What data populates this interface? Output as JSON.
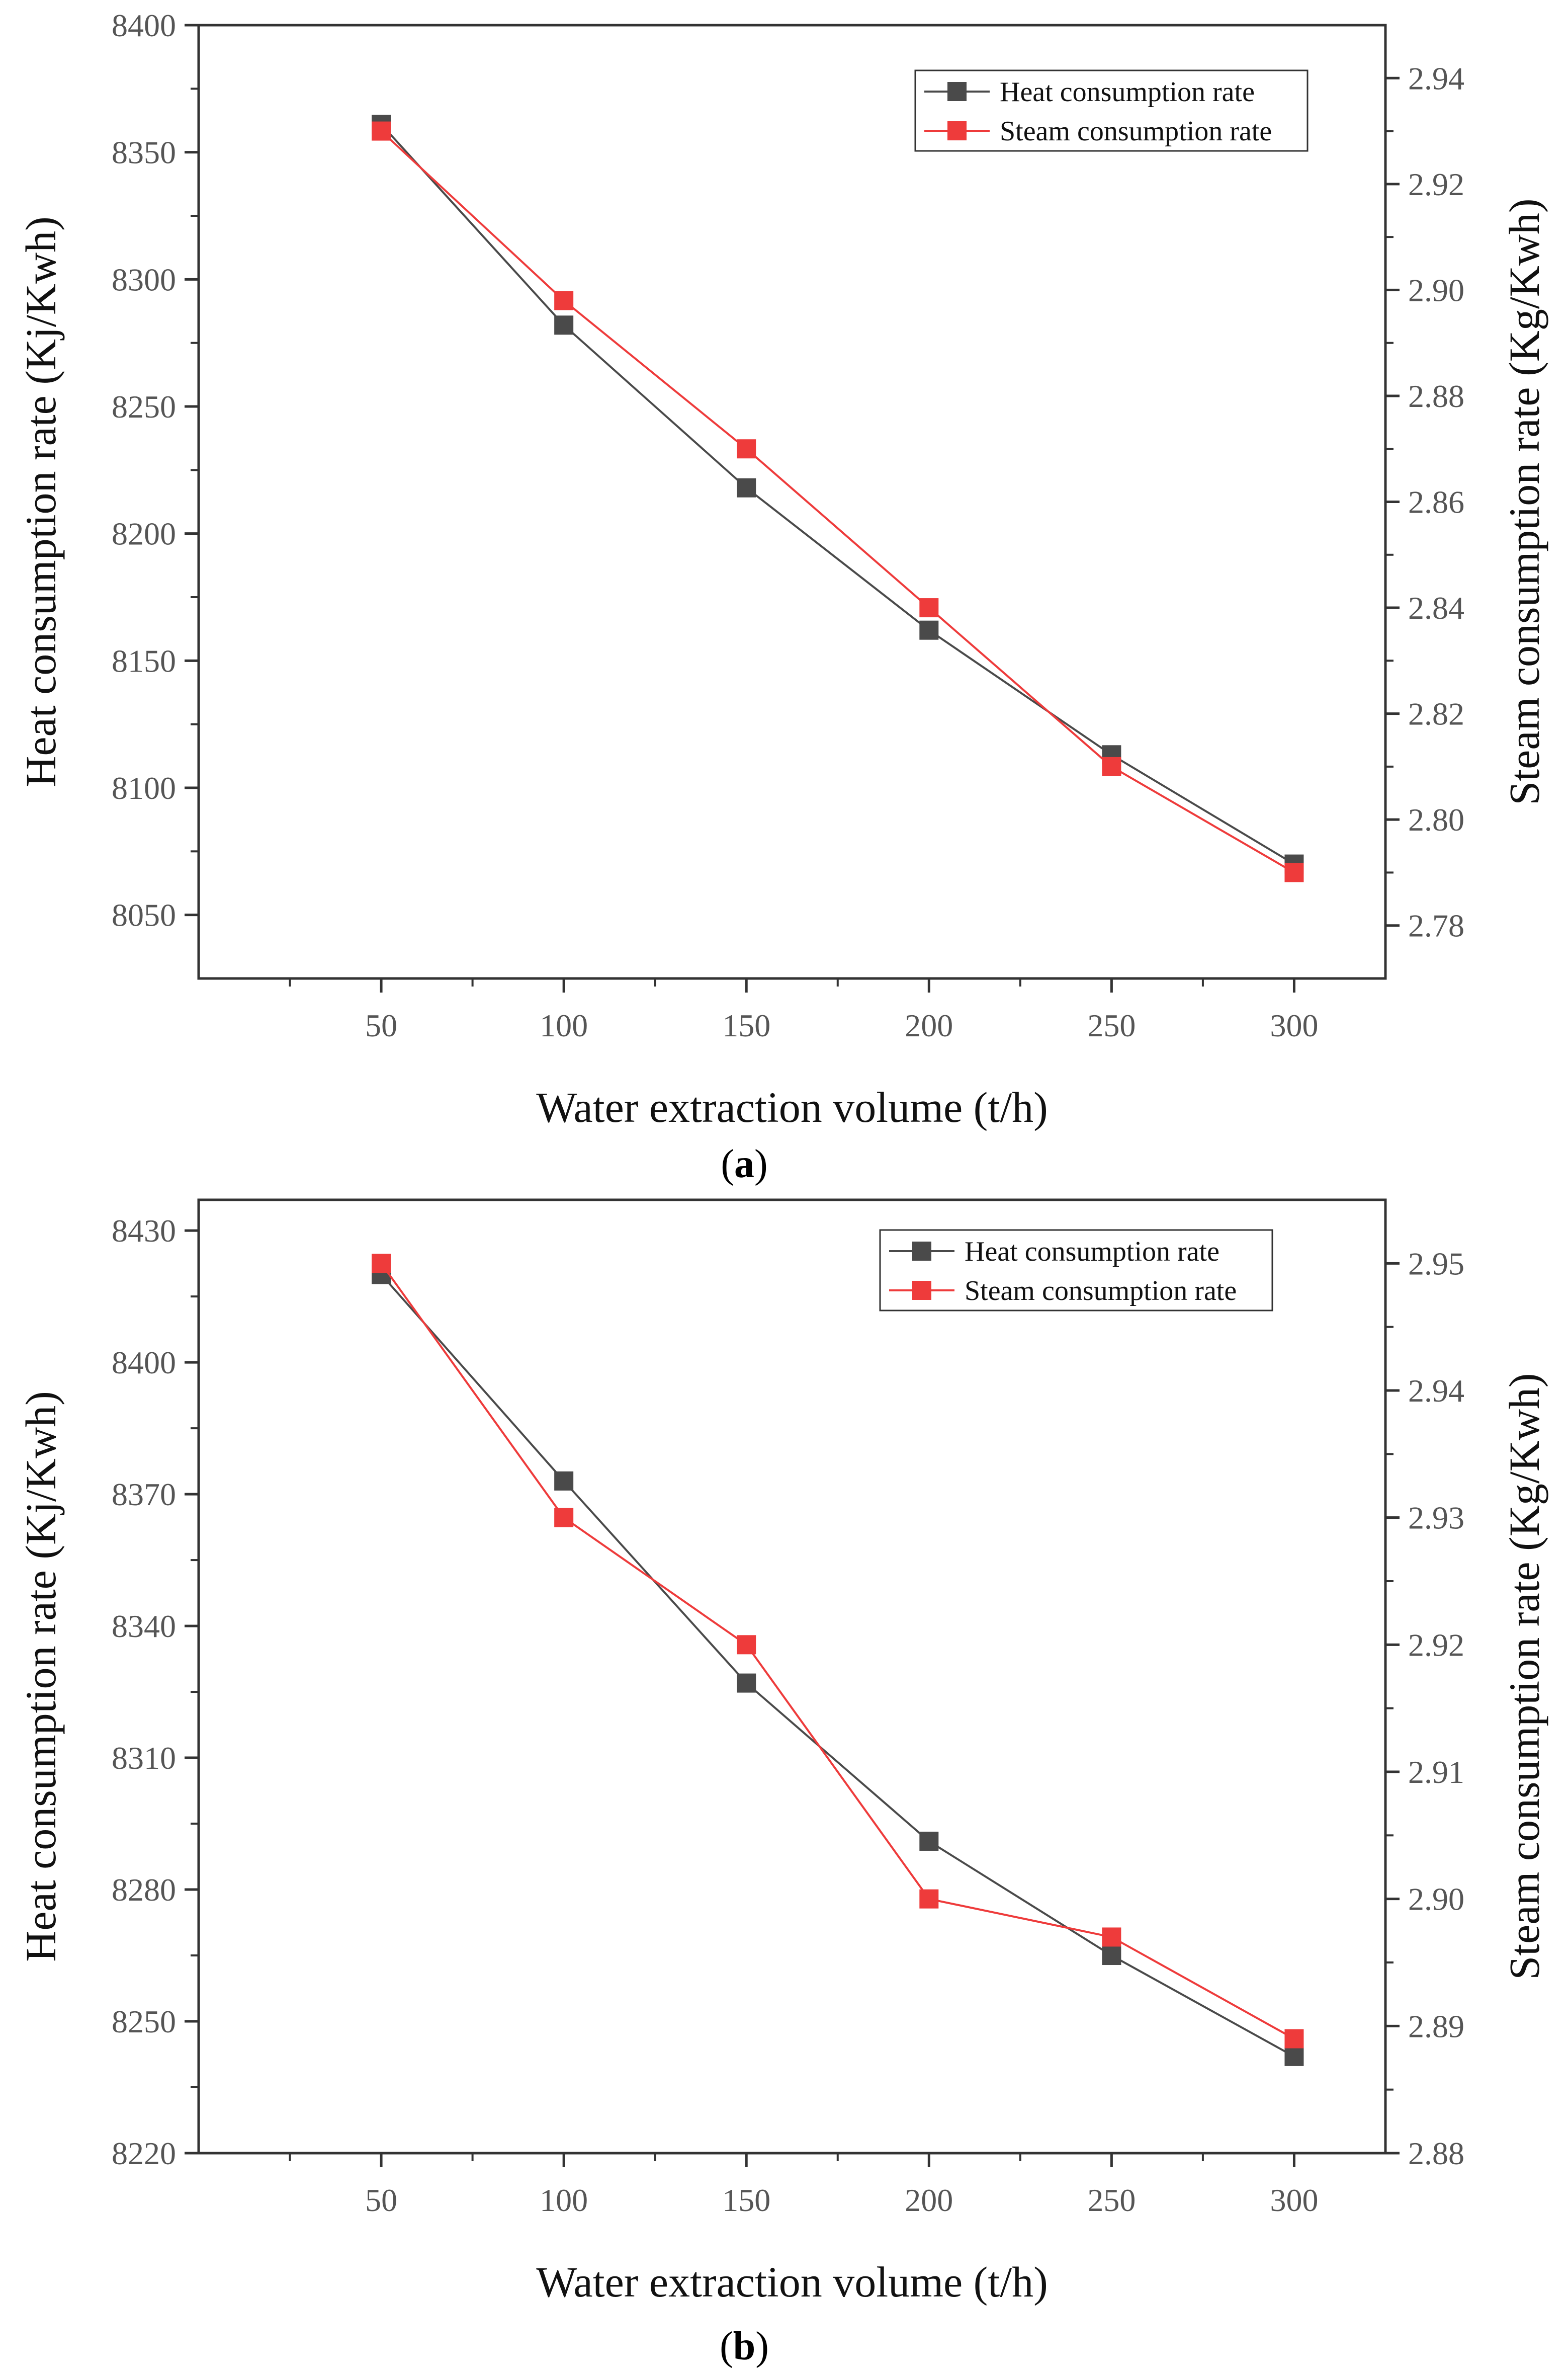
{
  "chart_data": [
    {
      "type": "line",
      "panel_label": "a",
      "title": "",
      "xlabel": "Water extraction volume (t/h)",
      "ylabel": "Heat consumption rate (Kj/Kwh)",
      "y2label": "Steam consumption rate (Kg/Kwh)",
      "x": [
        50,
        100,
        150,
        200,
        250,
        300
      ],
      "x_ticks": [
        "50",
        "100",
        "150",
        "200",
        "250",
        "300"
      ],
      "xlim": [
        0,
        325
      ],
      "ylim": [
        8025,
        8400
      ],
      "y_ticks": [
        "8050",
        "8100",
        "8150",
        "8200",
        "8250",
        "8300",
        "8350",
        "8400"
      ],
      "y2lim": [
        2.77,
        2.95
      ],
      "y2_ticks": [
        "2.78",
        "2.80",
        "2.82",
        "2.84",
        "2.86",
        "2.88",
        "2.90",
        "2.92",
        "2.94"
      ],
      "grid": false,
      "legend_position": "top-right",
      "series": [
        {
          "name": "Heat consumption rate",
          "axis": "left",
          "color": "#4a4a4a",
          "marker": "square",
          "values": [
            8361,
            8282,
            8218,
            8162,
            8113,
            8070
          ]
        },
        {
          "name": "Steam consumption rate",
          "axis": "right",
          "color": "#ee3b3b",
          "marker": "square",
          "values": [
            2.93,
            2.898,
            2.87,
            2.84,
            2.81,
            2.79
          ]
        }
      ]
    },
    {
      "type": "line",
      "panel_label": "b",
      "title": "",
      "xlabel": "Water extraction volume (t/h)",
      "ylabel": "Heat consumption rate (Kj/Kwh)",
      "y2label": "Steam consumption rate (Kg/Kwh)",
      "x": [
        50,
        100,
        150,
        200,
        250,
        300
      ],
      "x_ticks": [
        "50",
        "100",
        "150",
        "200",
        "250",
        "300"
      ],
      "xlim": [
        0,
        325
      ],
      "ylim": [
        8220,
        8437
      ],
      "y_ticks": [
        "8220",
        "8250",
        "8280",
        "8310",
        "8340",
        "8370",
        "8400",
        "8430"
      ],
      "y2lim": [
        2.88,
        2.955
      ],
      "y2_ticks": [
        "2.88",
        "2.89",
        "2.90",
        "2.91",
        "2.92",
        "2.93",
        "2.94",
        "2.95"
      ],
      "grid": false,
      "legend_position": "top-right",
      "series": [
        {
          "name": "Heat consumption rate",
          "axis": "left",
          "color": "#4a4a4a",
          "marker": "square",
          "values": [
            8420,
            8373,
            8327,
            8291,
            8265,
            8242
          ]
        },
        {
          "name": "Steam consumption rate",
          "axis": "right",
          "color": "#ee3b3b",
          "marker": "square",
          "values": [
            2.95,
            2.93,
            2.92,
            2.9,
            2.897,
            2.889
          ]
        }
      ]
    }
  ]
}
